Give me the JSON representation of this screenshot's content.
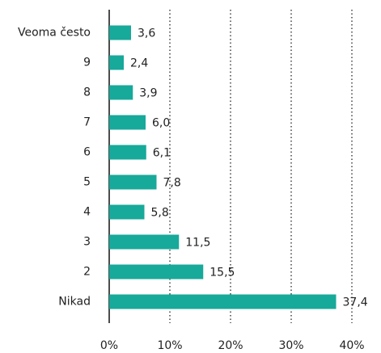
{
  "chart_data": {
    "type": "barh",
    "categories": [
      "Veoma često",
      "9",
      "8",
      "7",
      "6",
      "5",
      "4",
      "3",
      "2",
      "Nikad"
    ],
    "values": [
      3.6,
      2.4,
      3.9,
      6.0,
      6.1,
      7.8,
      5.8,
      11.5,
      15.5,
      37.4
    ],
    "value_labels": [
      "3,6",
      "2,4",
      "3,9",
      "6,0",
      "6,1",
      "7,8",
      "5,8",
      "11,5",
      "15,5",
      "37,4"
    ],
    "color": "#17a99a",
    "xlim": [
      0,
      40
    ],
    "xticks": [
      {
        "value": 0,
        "label": "0%"
      },
      {
        "value": 10,
        "label": "10%"
      },
      {
        "value": 20,
        "label": "20%"
      },
      {
        "value": 30,
        "label": "30%"
      },
      {
        "value": 40,
        "label": "40%"
      }
    ],
    "grid": true
  }
}
